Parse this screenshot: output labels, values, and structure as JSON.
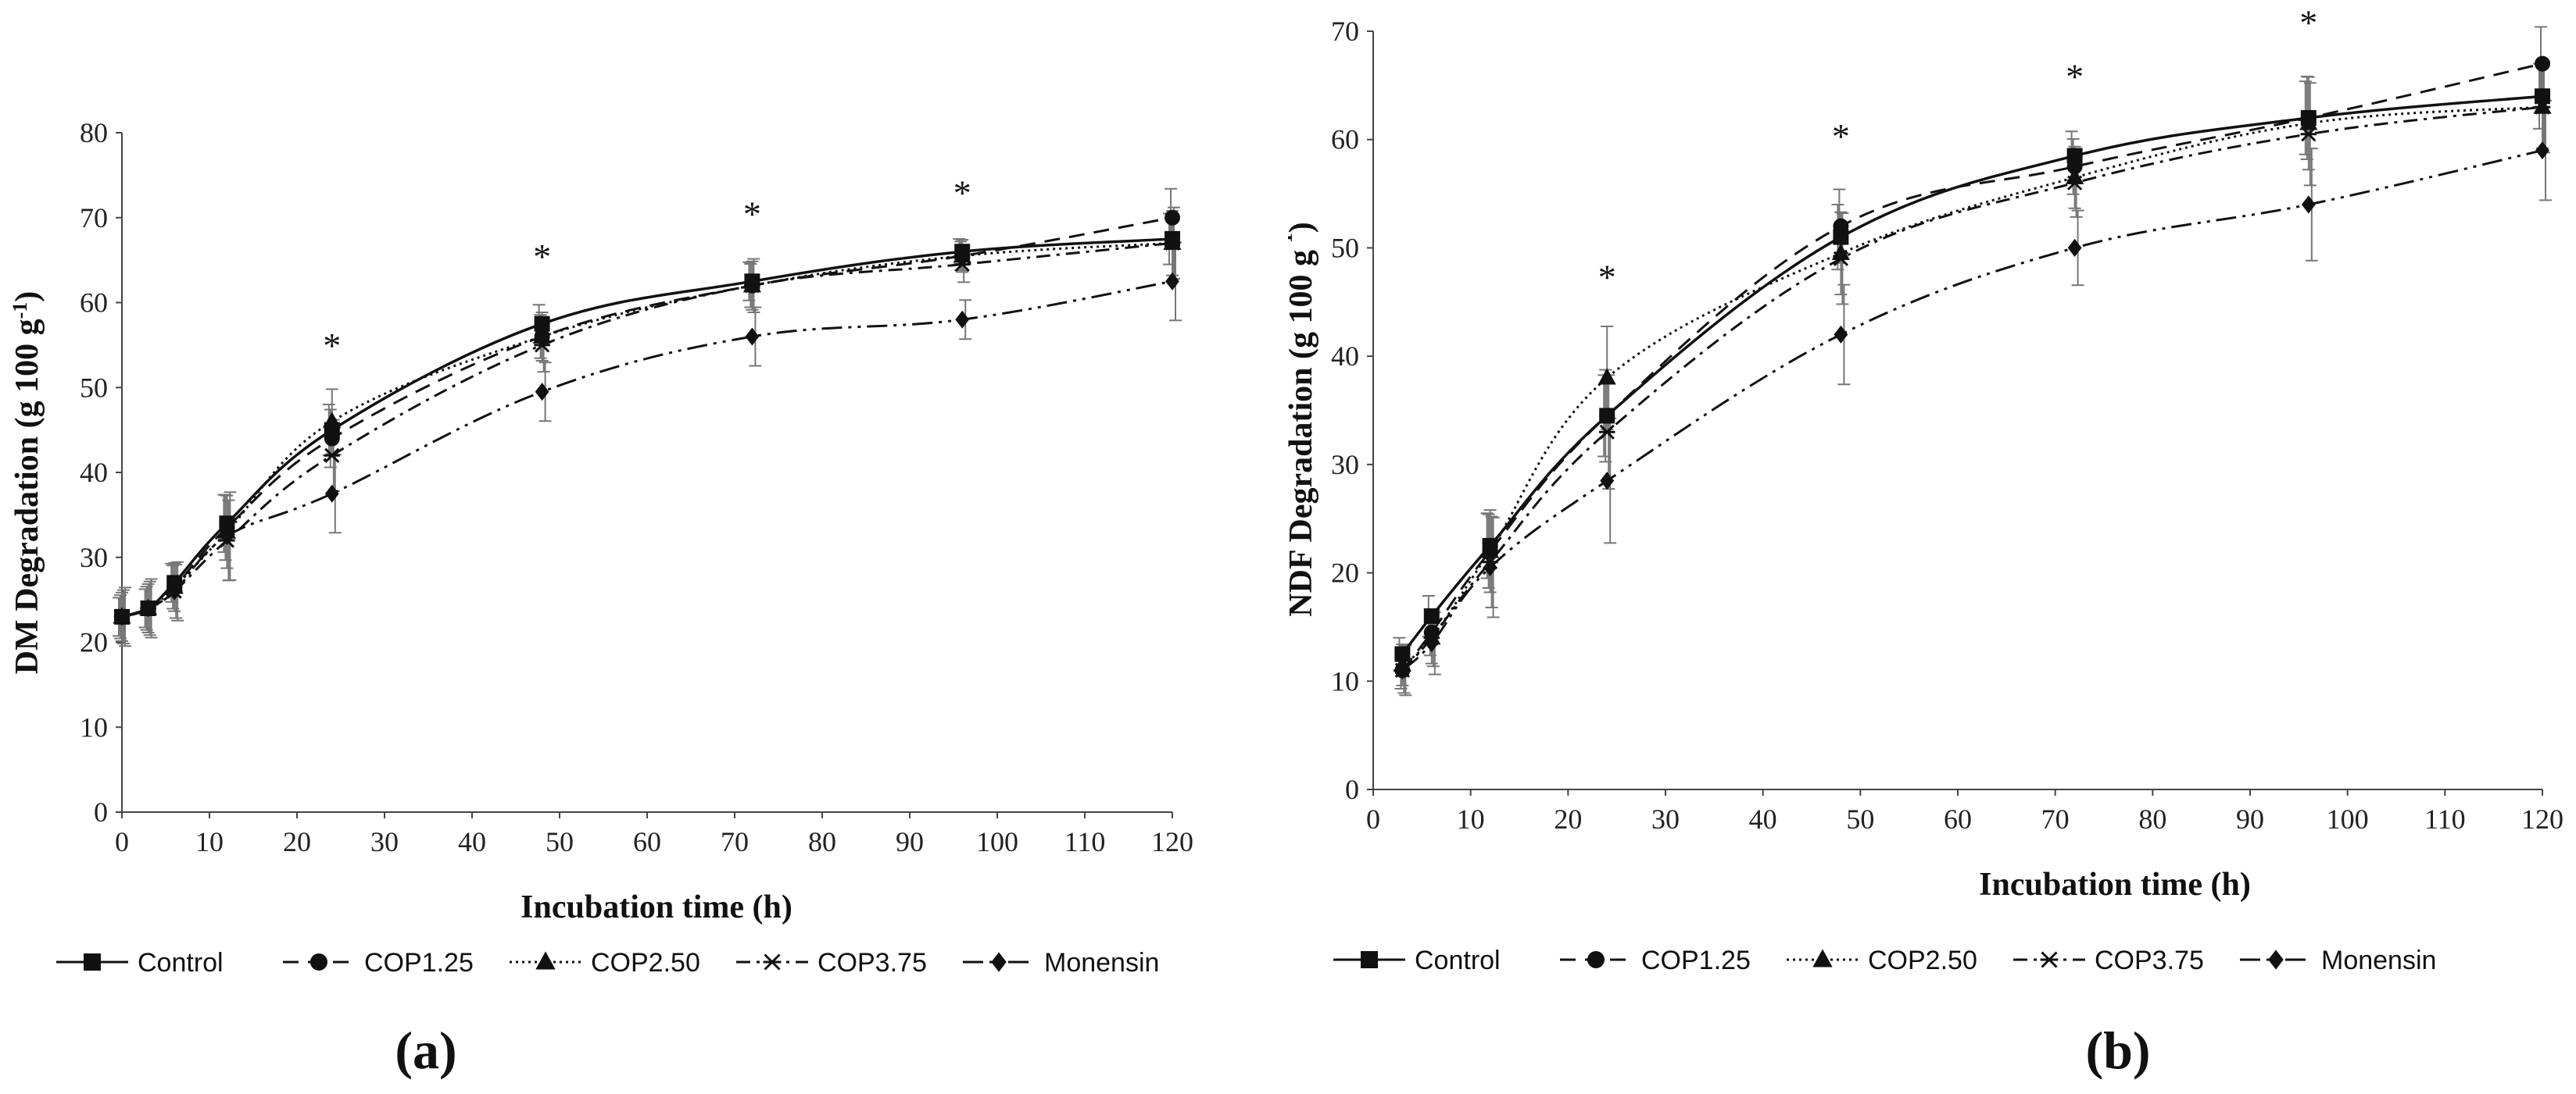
{
  "chart_data": [
    {
      "type": "line",
      "panel": "(a)",
      "xlabel": "Incubation time (h)",
      "ylabel": "DM Degradation (g 100 g",
      "ylabel_sup": "-1",
      "ylabel_end": ")",
      "xlim": [
        0,
        120
      ],
      "ylim": [
        0,
        80
      ],
      "xticks": [
        0,
        10,
        20,
        30,
        40,
        50,
        60,
        70,
        80,
        90,
        100,
        110,
        120
      ],
      "yticks": [
        0,
        10,
        20,
        30,
        40,
        50,
        60,
        70,
        80
      ],
      "x": [
        0,
        3,
        6,
        12,
        24,
        48,
        72,
        96,
        120
      ],
      "series": [
        {
          "name": "Control",
          "values": [
            23,
            24,
            27,
            34,
            45,
            57.5,
            62.5,
            66,
            67.5
          ]
        },
        {
          "name": "COP1.25",
          "values": [
            23,
            24,
            26.5,
            33.5,
            44,
            56,
            62,
            65.5,
            70
          ]
        },
        {
          "name": "COP2.50",
          "values": [
            23,
            24,
            26.5,
            33,
            46,
            56,
            62,
            65.5,
            67
          ]
        },
        {
          "name": "COP3.75",
          "values": [
            23,
            24,
            26,
            32,
            42,
            55,
            62,
            64.5,
            67
          ]
        },
        {
          "name": "Monensin",
          "values": [
            23,
            24,
            26,
            32.5,
            37.5,
            49.5,
            56,
            58,
            62.5
          ]
        }
      ],
      "error_bars": [
        3,
        3,
        3,
        4.5,
        4,
        3,
        3,
        2,
        4
      ],
      "significance_marks": [
        {
          "x": 24,
          "label": "*"
        },
        {
          "x": 48,
          "label": "*"
        },
        {
          "x": 72,
          "label": "*"
        },
        {
          "x": 96,
          "label": "*"
        }
      ]
    },
    {
      "type": "line",
      "panel": "(b)",
      "xlabel": "Incubation time (h)",
      "ylabel": "NDF Degradation (g 100 g",
      "ylabel_sup": "-1",
      "ylabel_end": ")",
      "xlim": [
        0,
        120
      ],
      "ylim": [
        0,
        70
      ],
      "xticks": [
        0,
        10,
        20,
        30,
        40,
        50,
        60,
        70,
        80,
        90,
        100,
        110,
        120
      ],
      "yticks": [
        0,
        10,
        20,
        30,
        40,
        50,
        60,
        70
      ],
      "x": [
        3,
        6,
        12,
        24,
        48,
        72,
        96,
        120
      ],
      "series": [
        {
          "name": "Control",
          "values": [
            12.5,
            16,
            22.5,
            34.5,
            51,
            58.5,
            62,
            64
          ]
        },
        {
          "name": "COP1.25",
          "values": [
            11,
            14.5,
            22,
            34.5,
            52,
            57.5,
            62,
            67
          ]
        },
        {
          "name": "COP2.50",
          "values": [
            11.5,
            14,
            22,
            38,
            49.5,
            56.5,
            61.5,
            63
          ]
        },
        {
          "name": "COP3.75",
          "values": [
            11,
            14,
            21,
            33,
            49,
            56,
            60.5,
            63
          ]
        },
        {
          "name": "Monensin",
          "values": [
            11,
            13.5,
            20.5,
            28.5,
            42,
            50,
            54,
            59
          ]
        }
      ],
      "error_bars": [
        2,
        2.5,
        4,
        5,
        4,
        3,
        4.5,
        4
      ],
      "significance_marks": [
        {
          "x": 24,
          "label": "*"
        },
        {
          "x": 48,
          "label": "*"
        },
        {
          "x": 72,
          "label": "*"
        },
        {
          "x": 96,
          "label": "*"
        }
      ]
    }
  ],
  "legend": [
    {
      "name": "Control",
      "dash": "",
      "marker": "square"
    },
    {
      "name": "COP1.25",
      "dash": "20 12",
      "marker": "circle"
    },
    {
      "name": "COP2.50",
      "dash": "3 5",
      "marker": "triangle"
    },
    {
      "name": "COP3.75",
      "dash": "18 8 4 8",
      "marker": "asterisk"
    },
    {
      "name": "Monensin",
      "dash": "26 8 4 8 4 8",
      "marker": "diamond"
    }
  ],
  "colors": {
    "line": "#111111",
    "axis": "#444444",
    "error": "#777777"
  }
}
